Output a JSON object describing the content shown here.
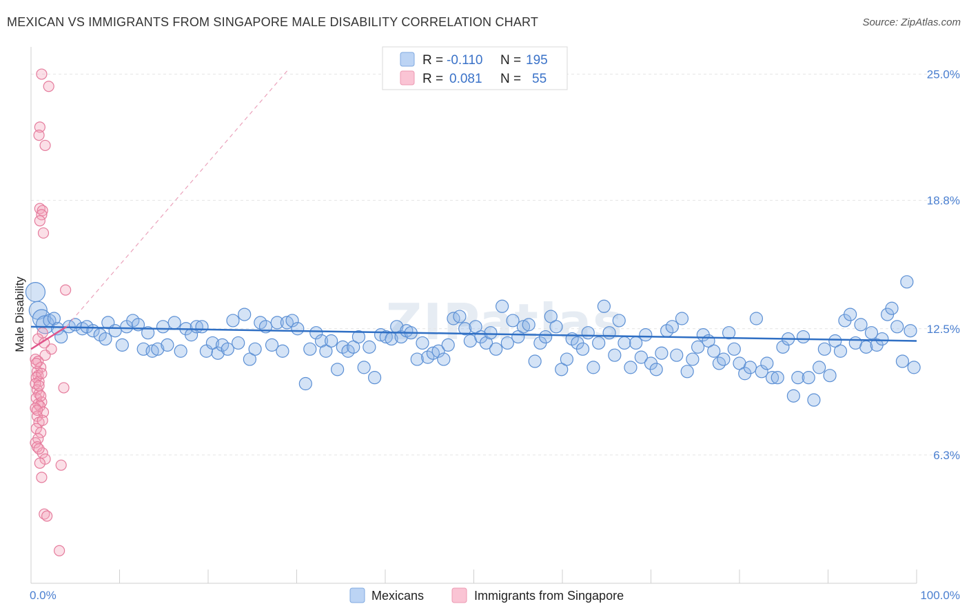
{
  "chart_data": {
    "type": "scatter",
    "title": "MEXICAN VS IMMIGRANTS FROM SINGAPORE MALE DISABILITY CORRELATION CHART",
    "source": "Source: ZipAtlas.com",
    "ylabel": "Male Disability",
    "xlabel": "",
    "xlim": [
      0,
      100
    ],
    "ylim": [
      0,
      26
    ],
    "x_tick_labels": [
      "0.0%",
      "100.0%"
    ],
    "y_ticks": [
      {
        "value": 25.0,
        "label": "25.0%"
      },
      {
        "value": 18.8,
        "label": "18.8%"
      },
      {
        "value": 12.5,
        "label": "12.5%"
      },
      {
        "value": 6.3,
        "label": "6.3%"
      }
    ],
    "legend": [
      {
        "series": "Mexicans",
        "r_label": "R =",
        "r_value": "-0.110",
        "n_label": "N =",
        "n_value": "195",
        "color": "#8fb6e8"
      },
      {
        "series": "Immigrants from Singapore",
        "r_label": "R =",
        "r_value": "0.081",
        "n_label": "N =",
        "n_value": "55",
        "color": "#f4a3bb"
      }
    ],
    "watermark": "ZIPatlas",
    "series": [
      {
        "name": "Mexicans",
        "color": "#8fb6e8",
        "stroke": "#5b8fd4",
        "trend": {
          "x": [
            0,
            100
          ],
          "y": [
            12.6,
            11.9
          ],
          "color": "#2f6fc4"
        },
        "points": [
          [
            0.5,
            14.3
          ],
          [
            0.8,
            13.4
          ],
          [
            1.2,
            13.0
          ],
          [
            1.6,
            12.7
          ],
          [
            2.1,
            12.9
          ],
          [
            2.6,
            13.0
          ],
          [
            3.0,
            12.5
          ],
          [
            3.4,
            12.1
          ],
          [
            4.3,
            12.6
          ],
          [
            5.0,
            12.7
          ],
          [
            5.8,
            12.5
          ],
          [
            6.3,
            12.6
          ],
          [
            7.0,
            12.4
          ],
          [
            7.8,
            12.2
          ],
          [
            8.4,
            12.0
          ],
          [
            8.7,
            12.8
          ],
          [
            9.5,
            12.4
          ],
          [
            10.3,
            11.7
          ],
          [
            10.8,
            12.6
          ],
          [
            11.5,
            12.9
          ],
          [
            12.1,
            12.7
          ],
          [
            12.7,
            11.5
          ],
          [
            13.2,
            12.3
          ],
          [
            13.7,
            11.4
          ],
          [
            14.3,
            11.5
          ],
          [
            14.9,
            12.6
          ],
          [
            15.4,
            11.7
          ],
          [
            16.2,
            12.8
          ],
          [
            16.9,
            11.4
          ],
          [
            17.5,
            12.5
          ],
          [
            18.1,
            12.2
          ],
          [
            18.7,
            12.6
          ],
          [
            19.3,
            12.6
          ],
          [
            19.8,
            11.4
          ],
          [
            20.5,
            11.8
          ],
          [
            21.1,
            11.3
          ],
          [
            21.6,
            11.7
          ],
          [
            22.2,
            11.5
          ],
          [
            22.8,
            12.9
          ],
          [
            23.4,
            11.8
          ],
          [
            24.1,
            13.2
          ],
          [
            24.7,
            11.0
          ],
          [
            25.3,
            11.5
          ],
          [
            25.9,
            12.8
          ],
          [
            26.5,
            12.6
          ],
          [
            27.2,
            11.7
          ],
          [
            27.8,
            12.8
          ],
          [
            28.4,
            11.4
          ],
          [
            28.9,
            12.8
          ],
          [
            29.5,
            12.9
          ],
          [
            30.1,
            12.5
          ],
          [
            31.0,
            9.8
          ],
          [
            31.5,
            11.5
          ],
          [
            32.2,
            12.3
          ],
          [
            32.8,
            11.9
          ],
          [
            33.3,
            11.4
          ],
          [
            33.9,
            11.9
          ],
          [
            34.6,
            10.5
          ],
          [
            35.2,
            11.6
          ],
          [
            35.8,
            11.4
          ],
          [
            36.4,
            11.6
          ],
          [
            37.0,
            12.1
          ],
          [
            37.6,
            10.6
          ],
          [
            38.2,
            11.6
          ],
          [
            38.8,
            10.1
          ],
          [
            39.5,
            12.2
          ],
          [
            40.1,
            12.1
          ],
          [
            40.7,
            12.0
          ],
          [
            41.3,
            12.6
          ],
          [
            41.8,
            12.1
          ],
          [
            42.4,
            12.4
          ],
          [
            42.9,
            12.3
          ],
          [
            43.6,
            11.0
          ],
          [
            44.2,
            11.8
          ],
          [
            44.8,
            11.1
          ],
          [
            45.4,
            11.3
          ],
          [
            46.0,
            11.4
          ],
          [
            46.6,
            11.0
          ],
          [
            47.1,
            11.7
          ],
          [
            47.7,
            13.0
          ],
          [
            48.4,
            13.1
          ],
          [
            49.0,
            12.5
          ],
          [
            49.6,
            11.9
          ],
          [
            50.2,
            12.6
          ],
          [
            50.8,
            12.1
          ],
          [
            51.4,
            11.8
          ],
          [
            51.9,
            12.3
          ],
          [
            52.5,
            11.5
          ],
          [
            53.2,
            13.6
          ],
          [
            53.8,
            11.8
          ],
          [
            54.4,
            12.9
          ],
          [
            55.0,
            12.1
          ],
          [
            55.6,
            12.6
          ],
          [
            56.2,
            12.7
          ],
          [
            56.9,
            10.9
          ],
          [
            57.5,
            11.8
          ],
          [
            58.1,
            12.1
          ],
          [
            58.7,
            13.1
          ],
          [
            59.3,
            12.6
          ],
          [
            59.9,
            10.5
          ],
          [
            60.5,
            11.0
          ],
          [
            61.1,
            12.0
          ],
          [
            61.7,
            11.8
          ],
          [
            62.3,
            11.5
          ],
          [
            62.9,
            12.3
          ],
          [
            63.5,
            10.6
          ],
          [
            64.1,
            11.8
          ],
          [
            64.7,
            13.6
          ],
          [
            65.3,
            12.3
          ],
          [
            65.9,
            11.2
          ],
          [
            66.4,
            12.9
          ],
          [
            67.0,
            11.8
          ],
          [
            67.7,
            10.6
          ],
          [
            68.3,
            11.8
          ],
          [
            68.9,
            11.1
          ],
          [
            69.4,
            12.2
          ],
          [
            70.0,
            10.8
          ],
          [
            70.6,
            10.5
          ],
          [
            71.2,
            11.3
          ],
          [
            71.8,
            12.4
          ],
          [
            72.4,
            12.6
          ],
          [
            72.9,
            11.2
          ],
          [
            73.5,
            13.0
          ],
          [
            74.1,
            10.4
          ],
          [
            74.7,
            11.0
          ],
          [
            75.3,
            11.6
          ],
          [
            75.9,
            12.2
          ],
          [
            76.5,
            11.9
          ],
          [
            77.1,
            11.4
          ],
          [
            77.7,
            10.8
          ],
          [
            78.2,
            11.0
          ],
          [
            78.8,
            12.3
          ],
          [
            79.4,
            11.5
          ],
          [
            80.0,
            10.8
          ],
          [
            80.6,
            10.3
          ],
          [
            81.2,
            10.6
          ],
          [
            81.9,
            13.0
          ],
          [
            82.5,
            10.4
          ],
          [
            83.1,
            10.8
          ],
          [
            83.7,
            10.1
          ],
          [
            84.3,
            10.1
          ],
          [
            84.9,
            11.6
          ],
          [
            85.5,
            12.0
          ],
          [
            86.1,
            9.2
          ],
          [
            86.6,
            10.1
          ],
          [
            87.2,
            12.1
          ],
          [
            87.8,
            10.1
          ],
          [
            88.4,
            9.0
          ],
          [
            89.0,
            10.6
          ],
          [
            89.6,
            11.5
          ],
          [
            90.2,
            10.2
          ],
          [
            90.8,
            11.9
          ],
          [
            91.4,
            11.4
          ],
          [
            91.9,
            12.9
          ],
          [
            92.5,
            13.2
          ],
          [
            93.1,
            11.8
          ],
          [
            93.7,
            12.7
          ],
          [
            94.3,
            11.6
          ],
          [
            94.9,
            12.3
          ],
          [
            95.5,
            11.7
          ],
          [
            96.1,
            12.0
          ],
          [
            96.7,
            13.2
          ],
          [
            97.2,
            13.5
          ],
          [
            97.8,
            12.6
          ],
          [
            98.4,
            10.9
          ],
          [
            98.9,
            14.8
          ],
          [
            99.3,
            12.4
          ],
          [
            99.7,
            10.6
          ]
        ]
      },
      {
        "name": "Immigrants from Singapore",
        "color": "#f4a3bb",
        "stroke": "#e57b9c",
        "trend": {
          "x": [
            0,
            4
          ],
          "y": [
            11.5,
            12.6
          ],
          "color": "#e0558a"
        },
        "trend_extended": {
          "x": [
            4,
            29
          ],
          "y": [
            12.6,
            25.2
          ],
          "color": "#eba2bb"
        },
        "points": [
          [
            1.2,
            25.0
          ],
          [
            2.0,
            24.4
          ],
          [
            1.0,
            22.4
          ],
          [
            0.9,
            22.0
          ],
          [
            1.6,
            21.5
          ],
          [
            1.0,
            18.4
          ],
          [
            1.3,
            18.3
          ],
          [
            1.2,
            18.1
          ],
          [
            1.0,
            17.8
          ],
          [
            1.4,
            17.2
          ],
          [
            3.9,
            14.4
          ],
          [
            1.3,
            12.3
          ],
          [
            2.3,
            11.5
          ],
          [
            1.6,
            11.2
          ],
          [
            0.5,
            11.0
          ],
          [
            0.8,
            10.9
          ],
          [
            1.1,
            10.6
          ],
          [
            0.7,
            10.4
          ],
          [
            0.8,
            10.2
          ],
          [
            0.6,
            10.1
          ],
          [
            0.9,
            9.9
          ],
          [
            0.5,
            9.8
          ],
          [
            3.7,
            9.6
          ],
          [
            0.7,
            9.5
          ],
          [
            0.9,
            9.3
          ],
          [
            0.6,
            9.1
          ],
          [
            1.2,
            8.9
          ],
          [
            0.8,
            8.8
          ],
          [
            1.0,
            8.7
          ],
          [
            0.5,
            8.6
          ],
          [
            1.4,
            8.4
          ],
          [
            0.7,
            8.2
          ],
          [
            0.9,
            7.9
          ],
          [
            0.6,
            7.6
          ],
          [
            1.1,
            7.4
          ],
          [
            0.8,
            7.1
          ],
          [
            0.5,
            6.9
          ],
          [
            0.7,
            6.7
          ],
          [
            1.3,
            6.4
          ],
          [
            1.6,
            6.1
          ],
          [
            1.0,
            5.9
          ],
          [
            3.4,
            5.8
          ],
          [
            1.2,
            5.2
          ],
          [
            1.5,
            3.4
          ],
          [
            1.8,
            3.3
          ],
          [
            3.2,
            1.6
          ],
          [
            0.8,
            12.0
          ],
          [
            1.5,
            11.8
          ],
          [
            0.6,
            10.8
          ],
          [
            1.2,
            10.3
          ],
          [
            0.9,
            9.7
          ],
          [
            1.1,
            9.2
          ],
          [
            0.7,
            8.5
          ],
          [
            1.3,
            8.0
          ],
          [
            0.9,
            6.6
          ]
        ]
      }
    ]
  }
}
